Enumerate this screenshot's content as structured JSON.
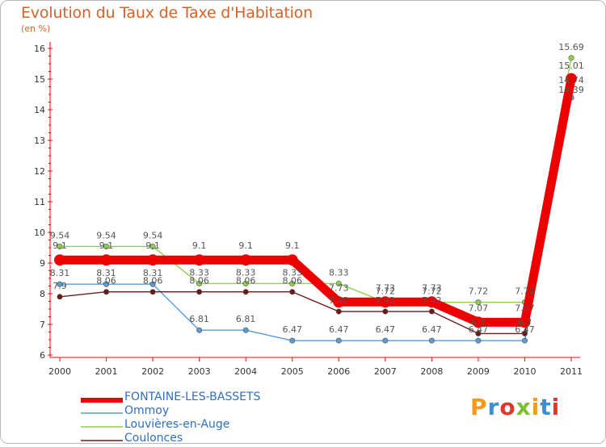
{
  "title": "Evolution du Taux de Taxe d'Habitation",
  "unit": "(en %)",
  "logo": "Proxiti",
  "chart_data": {
    "type": "line",
    "categories": [
      "2000",
      "2001",
      "2002",
      "2003",
      "2004",
      "2005",
      "2006",
      "2007",
      "2008",
      "2009",
      "2010",
      "2011"
    ],
    "ylim": [
      6,
      16
    ],
    "yticks": [
      "6",
      "7",
      "8",
      "9",
      "10",
      "11",
      "12",
      "13",
      "14",
      "15",
      "16"
    ],
    "grid": false,
    "legend_position": "bottom-left",
    "series": [
      {
        "name": "FONTAINE-LES-BASSETS",
        "color": "#ee0000",
        "values": [
          9.1,
          9.1,
          9.1,
          9.1,
          9.1,
          9.1,
          7.73,
          7.73,
          7.73,
          7.07,
          7.07,
          15.01
        ],
        "labels": [
          "9.1",
          "9.1",
          "9.1",
          "9.1",
          "9.1",
          "9.1",
          "7.73",
          "7.73",
          "7.73",
          "7.07",
          "7.07",
          "15.01"
        ]
      },
      {
        "name": "Ommoy",
        "color": "#5b9bd5",
        "values": [
          8.31,
          8.31,
          8.31,
          6.81,
          6.81,
          6.47,
          6.47,
          6.47,
          6.47,
          6.47,
          6.47,
          14.39
        ],
        "labels": [
          "8.31",
          "8.31",
          "8.31",
          "6.81",
          "6.81",
          "6.47",
          "6.47",
          "6.47",
          "6.47",
          "6.47",
          "6.47",
          "14.39"
        ]
      },
      {
        "name": "Louvières-en-Auge",
        "color": "#8fd14f",
        "values": [
          9.54,
          9.54,
          9.54,
          8.33,
          8.33,
          8.33,
          8.33,
          7.72,
          7.72,
          7.72,
          7.72,
          15.69
        ],
        "labels": [
          "9.54",
          "9.54",
          "9.54",
          "8.33",
          "8.33",
          "8.33",
          "8.33",
          "7.72",
          "7.72",
          "7.72",
          "7.72",
          "15.69"
        ]
      },
      {
        "name": "Coulonces",
        "color": "#6b1a1a",
        "values": [
          7.9,
          8.06,
          8.06,
          8.06,
          8.06,
          8.06,
          7.42,
          7.42,
          7.42,
          6.7,
          6.7,
          14.74
        ],
        "labels": [
          "7.9",
          "8.06",
          "8.06",
          "8.06",
          "8.06",
          "8.06",
          "7.42",
          "7.42",
          "7.42",
          "6.7",
          "6.7",
          "14.74"
        ]
      }
    ]
  }
}
